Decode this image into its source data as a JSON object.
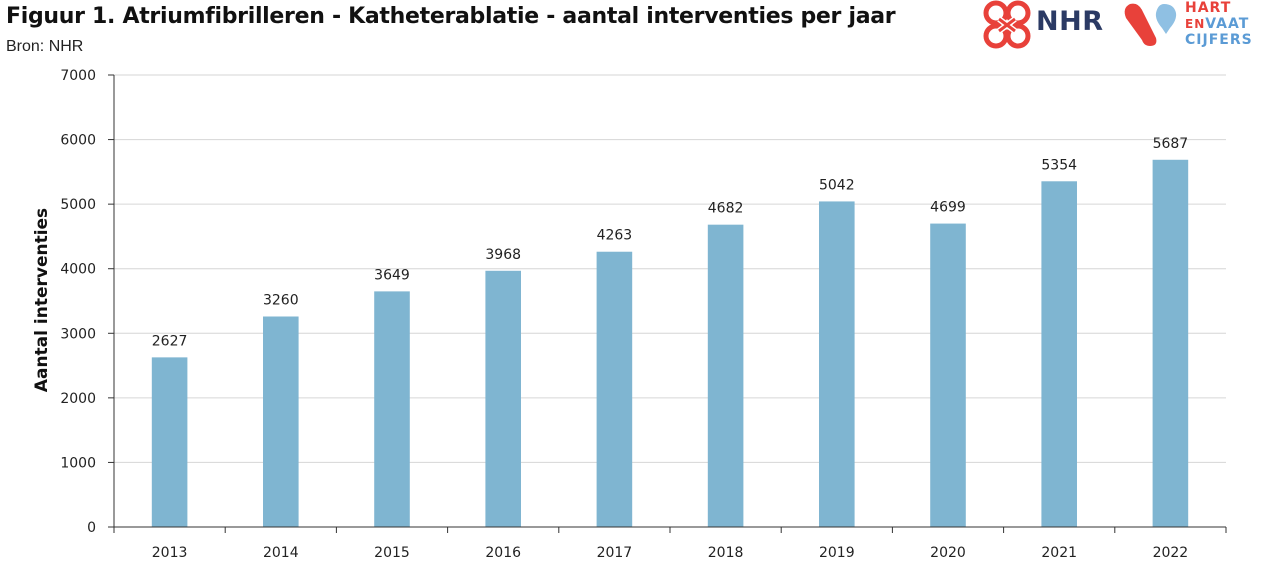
{
  "header": {
    "title": "Figuur 1. Atriumfibrilleren - Katheterablatie - aantal interventies per jaar",
    "subtitle": "Bron: NHR"
  },
  "logos": {
    "nhr": "NHR",
    "hvc_line1": "HART",
    "hvc_line2_en": "EN",
    "hvc_line2_vaat": "VAAT",
    "hvc_line3": "CIJFERS",
    "nhr_color": "#2b3a64",
    "red": "#e8413a",
    "blue": "#5b9bd5"
  },
  "chart_data": {
    "type": "bar",
    "categories": [
      "2013",
      "2014",
      "2015",
      "2016",
      "2017",
      "2018",
      "2019",
      "2020",
      "2021",
      "2022"
    ],
    "values": [
      2627,
      3260,
      3649,
      3968,
      4263,
      4682,
      5042,
      4699,
      5354,
      5687
    ],
    "data_labels": [
      "2627",
      "3260",
      "3649",
      "3968",
      "4263",
      "4682",
      "5042",
      "4699",
      "5354",
      "5687"
    ],
    "title": "Figuur 1. Atriumfibrilleren - Katheterablatie - aantal interventies per jaar",
    "xlabel": "",
    "ylabel": "Aantal interventies",
    "ylim": [
      0,
      7000
    ],
    "yticks": [
      "0",
      "1000",
      "2000",
      "3000",
      "4000",
      "5000",
      "6000",
      "7000"
    ],
    "grid": true,
    "legend": "none",
    "bar_color": "#7fb5d1"
  }
}
